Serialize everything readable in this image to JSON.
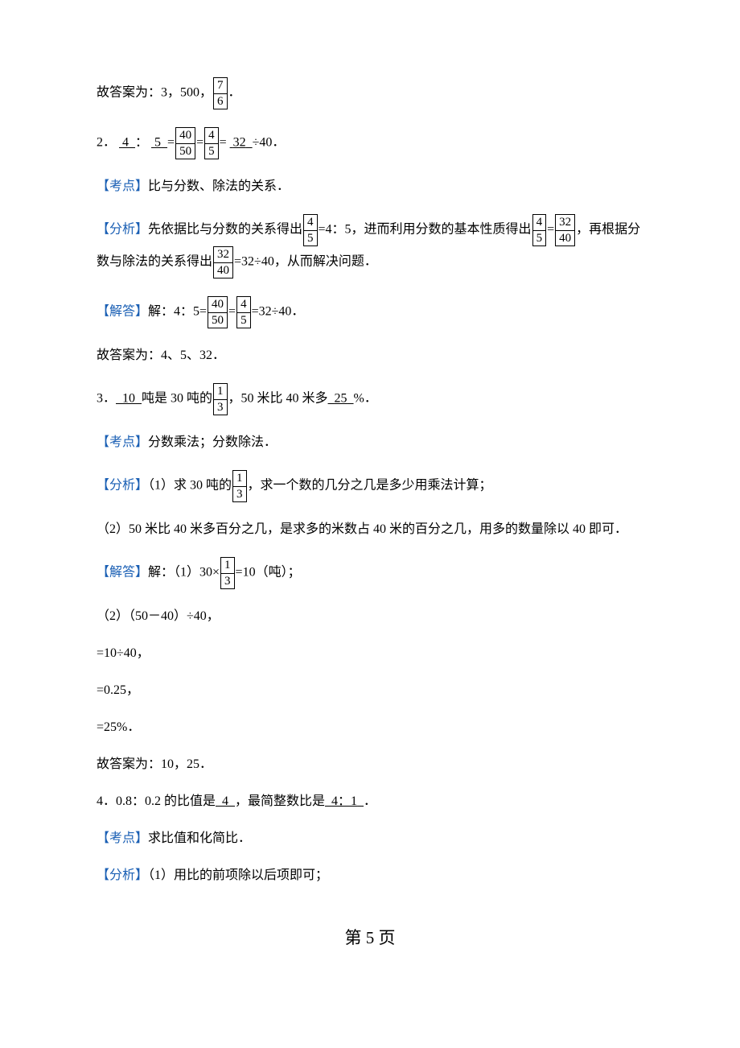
{
  "colors": {
    "text": "#000000",
    "accent": "#1a5fb4",
    "bg": "#ffffff",
    "border": "#000000"
  },
  "typography": {
    "body_fontsize": 16,
    "body_family": "SimSun",
    "footer_fontsize": 21
  },
  "q1": {
    "answer_prefix": "故答案为：3，500，",
    "frac": {
      "n": "7",
      "d": "6"
    },
    "suffix": "．"
  },
  "q2": {
    "no": "2．",
    "a": "4",
    "colon": "：",
    "b": "5",
    "eq1": "=",
    "frac1": {
      "n": "40",
      "d": "50"
    },
    "eq2": "=",
    "frac2": {
      "n": "4",
      "d": "5"
    },
    "eq3": "=",
    "c": "32",
    "div40": "÷40．",
    "kaodian_label": "【考点】",
    "kaodian": "比与分数、除法的关系．",
    "fenxi_label": "【分析】",
    "fenxi_p1": "先依据比与分数的关系得出",
    "ffrac1": {
      "n": "4",
      "d": "5"
    },
    "fenxi_p2": "=4：5，进而利用分数的基本性质得出",
    "ffrac2a": {
      "n": "4",
      "d": "5"
    },
    "eqmid": "=",
    "ffrac2b": {
      "n": "32",
      "d": "40"
    },
    "fenxi_p3": "，再根据分数与除法的关系得出",
    "ffrac3": {
      "n": "32",
      "d": "40"
    },
    "fenxi_p4": "=32÷40，从而解决问题．",
    "jieda_label": "【解答】",
    "jie": "解：4：5=",
    "jfrac1": {
      "n": "40",
      "d": "50"
    },
    "jeq": "=",
    "jfrac2": {
      "n": "4",
      "d": "5"
    },
    "jtail": "=32÷40．",
    "answer": "故答案为：4、5、32．"
  },
  "q3": {
    "no": "3．",
    "a": "10",
    "p1": "吨是 30 吨的",
    "frac": {
      "n": "1",
      "d": "3"
    },
    "p2": "，50 米比 40 米多",
    "b": "25",
    "p3": "%．",
    "kaodian_label": "【考点】",
    "kaodian": "分数乘法；分数除法．",
    "fenxi_label": "【分析】",
    "fenxi_p1": "（1）求 30 吨的",
    "ffrac": {
      "n": "1",
      "d": "3"
    },
    "fenxi_p2": "，求一个数的几分之几是多少用乘法计算；",
    "fenxi_line2": "（2）50 米比 40 米多百分之几，是求多的米数占 40 米的百分之几，用多的数量除以 40 即可．",
    "jieda_label": "【解答】",
    "j1a": "解：（1）30×",
    "jfrac": {
      "n": "1",
      "d": "3"
    },
    "j1b": "=10（吨）；",
    "j2": "（2）（50－40）÷40，",
    "j3": "=10÷40，",
    "j4": "=0.25，",
    "j5": "=25%．",
    "answer": "故答案为：10，25．"
  },
  "q4": {
    "line": "4．0.8：0.2 的比值是",
    "a": "4",
    "mid": "，最简整数比是",
    "b": "4：1",
    "tail": "．",
    "kaodian_label": "【考点】",
    "kaodian": "求比值和化简比．",
    "fenxi_label": "【分析】",
    "fenxi": "（1）用比的前项除以后项即可；"
  },
  "footer": "第 5 页"
}
